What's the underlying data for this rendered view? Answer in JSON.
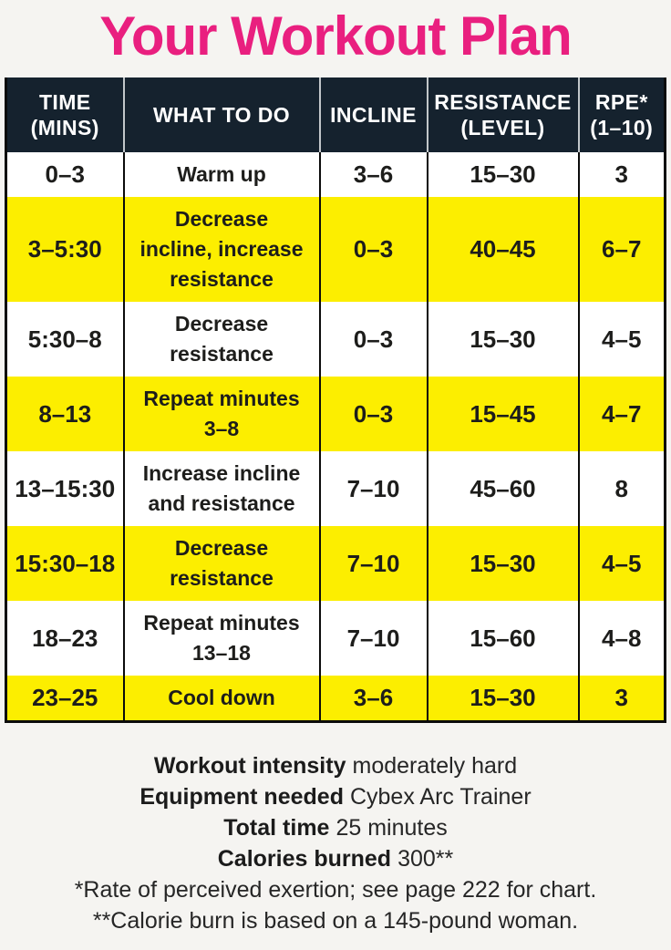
{
  "title": "Your Workout Plan",
  "colors": {
    "title_pink": "#e91f7f",
    "header_bg": "#15222e",
    "highlight_yellow": "#fcee00",
    "text_dark": "#1d1d1b"
  },
  "table": {
    "columns": [
      "TIME\n(MINS)",
      "WHAT TO DO",
      "INCLINE",
      "RESISTANCE\n(LEVEL)",
      "RPE*\n(1–10)"
    ],
    "rows": [
      {
        "time": "0–3",
        "what": "Warm up",
        "incline": "3–6",
        "resistance": "15–30",
        "rpe": "3"
      },
      {
        "time": "3–5:30",
        "what": "Decrease\nincline, increase\nresistance",
        "incline": "0–3",
        "resistance": "40–45",
        "rpe": "6–7"
      },
      {
        "time": "5:30–8",
        "what": "Decrease\nresistance",
        "incline": "0–3",
        "resistance": "15–30",
        "rpe": "4–5"
      },
      {
        "time": "8–13",
        "what": "Repeat minutes\n3–8",
        "incline": "0–3",
        "resistance": "15–45",
        "rpe": "4–7"
      },
      {
        "time": "13–15:30",
        "what": "Increase incline\nand resistance",
        "incline": "7–10",
        "resistance": "45–60",
        "rpe": "8"
      },
      {
        "time": "15:30–18",
        "what": "Decrease\nresistance",
        "incline": "7–10",
        "resistance": "15–30",
        "rpe": "4–5"
      },
      {
        "time": "18–23",
        "what": "Repeat minutes\n13–18",
        "incline": "7–10",
        "resistance": "15–60",
        "rpe": "4–8"
      },
      {
        "time": "23–25",
        "what": "Cool down",
        "incline": "3–6",
        "resistance": "15–30",
        "rpe": "3"
      }
    ]
  },
  "notes": [
    {
      "label": "Workout intensity",
      "value": "moderately hard"
    },
    {
      "label": "Equipment needed",
      "value": "Cybex Arc Trainer"
    },
    {
      "label": "Total time",
      "value": "25 minutes"
    },
    {
      "label": "Calories burned",
      "value": "300**"
    }
  ],
  "footnotes": [
    "*Rate of perceived exertion; see page 222 for chart.",
    "**Calorie burn is based on a 145-pound woman."
  ]
}
